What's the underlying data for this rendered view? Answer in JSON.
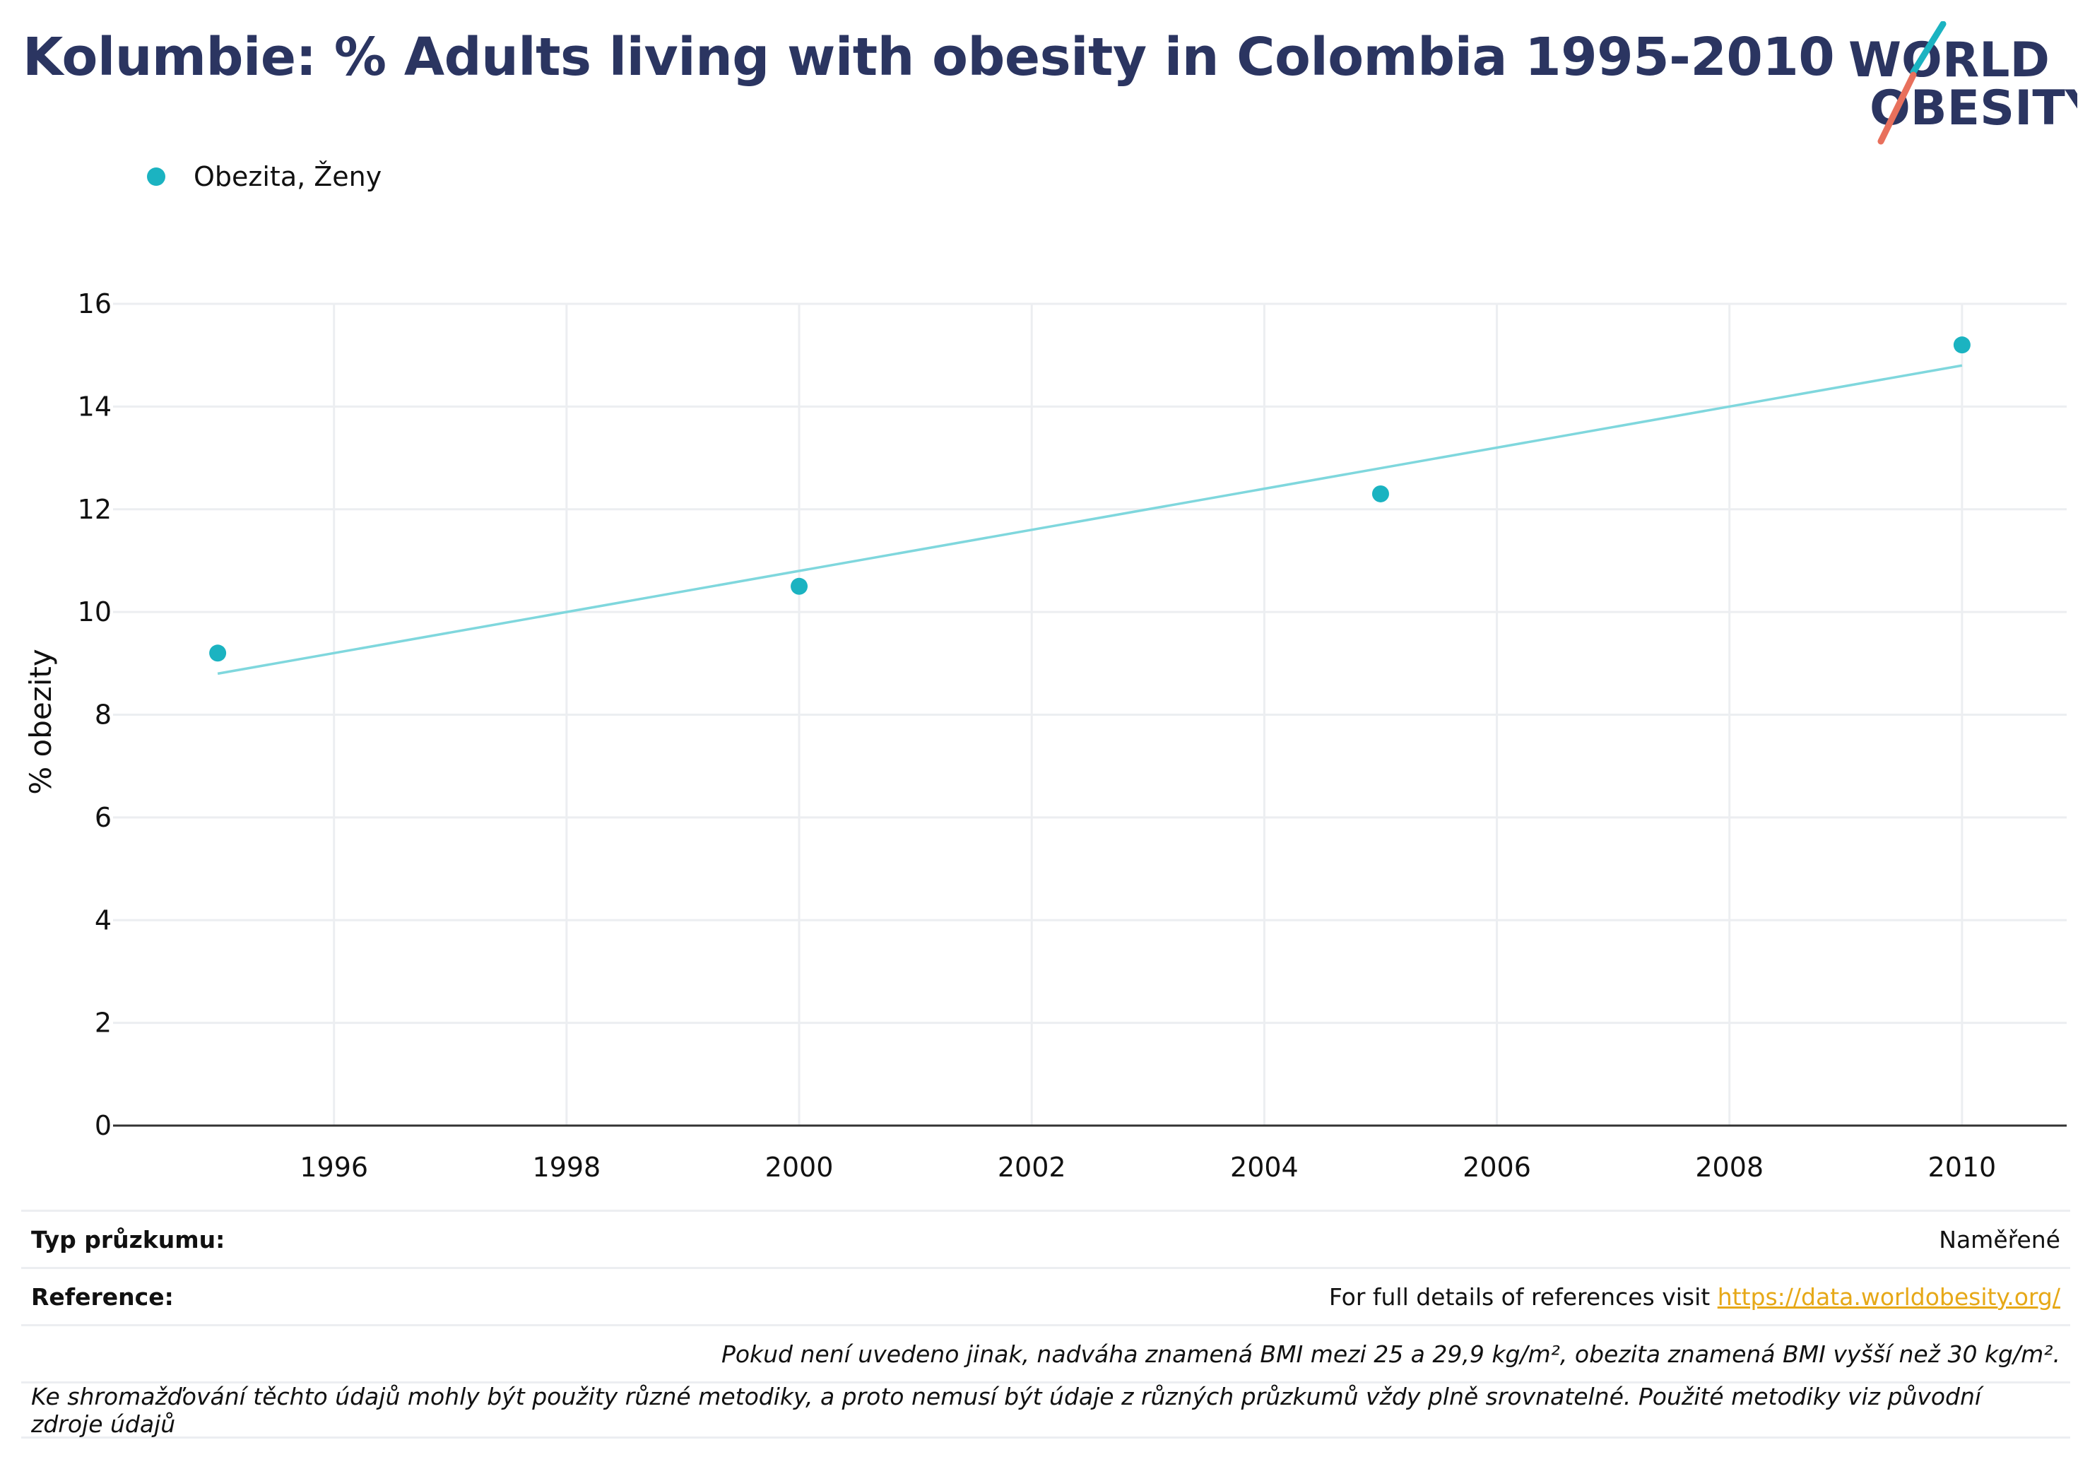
{
  "title": "Kolumbie: % Adults living with obesity in Colombia 1995-2010",
  "logo": {
    "line1": "WORLD",
    "line2": "OBESITY"
  },
  "colors": {
    "series": "#1bb3c1",
    "trend": "#7fd7dd",
    "title": "#2b3561",
    "grid": "#eceef1",
    "link": "#e6a817"
  },
  "info": {
    "survey_type_label": "Typ průzkumu:",
    "survey_type_value": "Naměřené",
    "reference_label": "Reference:",
    "reference_text": "For full details of references visit ",
    "reference_link": "https://data.worldobesity.org/",
    "note1": "Pokud není uvedeno jinak, nadváha znamená BMI mezi 25 a 29,9 kg/m², obezita znamená BMI vyšší než 30 kg/m².",
    "note2": "Ke shromažďování těchto údajů mohly být použity různé metodiky, a proto nemusí být údaje z různých průzkumů vždy plně srovnatelné. Použité metodiky viz původní zdroje údajů"
  },
  "chart_data": {
    "type": "scatter",
    "title": "Kolumbie: % Adults living with obesity in Colombia 1995-2010",
    "xlabel": "",
    "ylabel": "% obezity",
    "xlim": [
      1994.1,
      2010.9
    ],
    "ylim": [
      0,
      16
    ],
    "xticks": [
      1996,
      1998,
      2000,
      2002,
      2004,
      2006,
      2008,
      2010
    ],
    "yticks": [
      0,
      2,
      4,
      6,
      8,
      10,
      12,
      14,
      16
    ],
    "grid": true,
    "legend_position": "top-left",
    "series": [
      {
        "name": "Obezita, Ženy",
        "x": [
          1995,
          2000,
          2005,
          2010
        ],
        "y": [
          9.2,
          10.5,
          12.3,
          15.2
        ]
      }
    ],
    "trendline": {
      "x": [
        1995,
        2010
      ],
      "y": [
        8.8,
        14.8
      ]
    }
  }
}
